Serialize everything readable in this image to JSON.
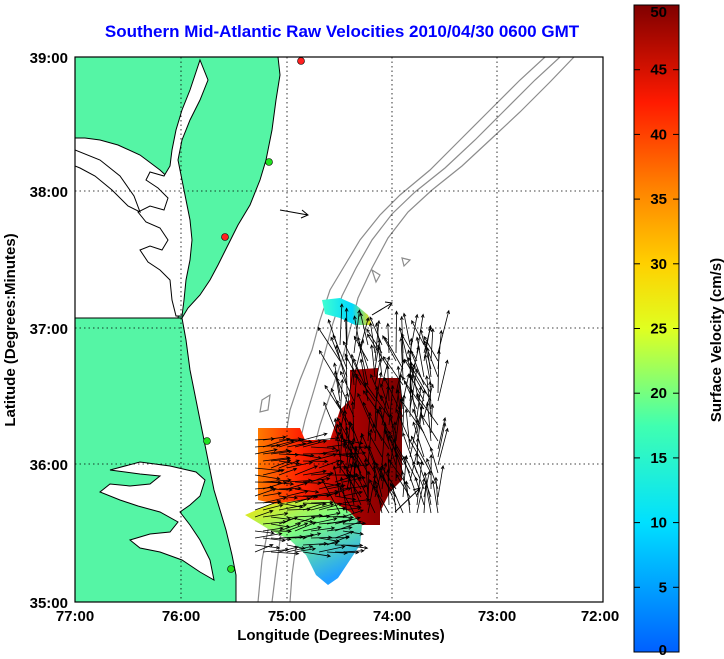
{
  "title": "Southern Mid-Atlantic Raw Velocities 2010/04/30 0600 GMT",
  "axes": {
    "xlabel": "Longitude (Degrees:Minutes)",
    "ylabel": "Latitude (Degrees:Minutes)",
    "x_ticks": [
      "77:00",
      "76:00",
      "75:00",
      "74:00",
      "73:00",
      "72:00"
    ],
    "y_ticks": [
      "39:00",
      "38:00",
      "37:00",
      "36:00",
      "35:00"
    ]
  },
  "colorbar": {
    "label": "Surface Velocity (cm/s)",
    "min": 0,
    "max": 50,
    "ticks": [
      "50",
      "45",
      "40",
      "35",
      "30",
      "25",
      "20",
      "15",
      "10",
      "5",
      "0"
    ]
  },
  "colors": {
    "land": "#55f5a5",
    "coast": "#000000",
    "bathymetry": "#8c8c8c",
    "grid": "#000000",
    "title": "#0000ff",
    "station_red": "#ff2020",
    "station_green": "#20e020"
  }
}
